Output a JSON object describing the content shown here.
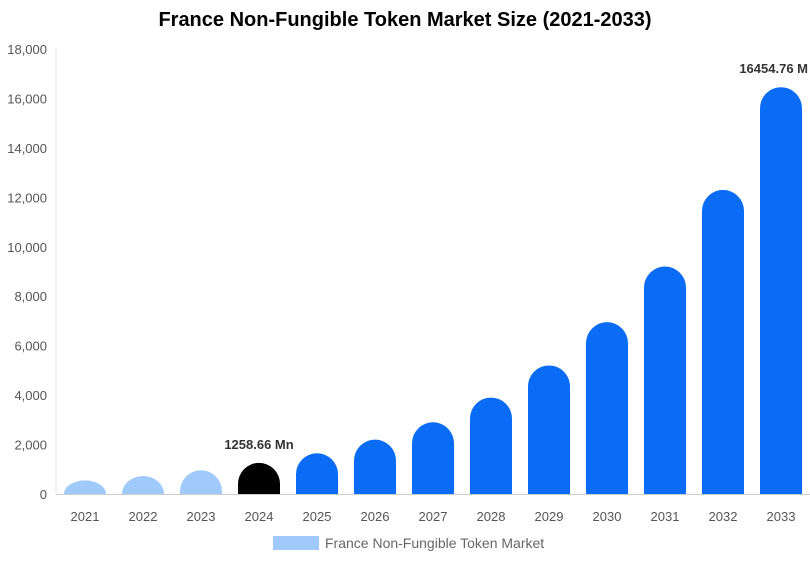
{
  "chart_data": {
    "type": "bar",
    "title": "France Non-Fungible Token Market Size (2021-2033)",
    "xlabel": "",
    "ylabel": "",
    "categories": [
      "2021",
      "2022",
      "2023",
      "2024",
      "2025",
      "2026",
      "2027",
      "2028",
      "2029",
      "2030",
      "2031",
      "2032",
      "2033"
    ],
    "series": [
      {
        "name": "France Non-Fungible Token Market",
        "values": [
          550,
          730,
          960,
          1258.66,
          1650,
          2200,
          2900,
          3900,
          5200,
          6950,
          9200,
          12300,
          16454.76
        ]
      }
    ],
    "bar_colors": [
      "#a0cafc",
      "#a0cafc",
      "#a0cafc",
      "#000000",
      "#0a6cf5",
      "#0a6cf5",
      "#0a6cf5",
      "#0a6cf5",
      "#0a6cf5",
      "#0a6cf5",
      "#0a6cf5",
      "#0a6cf5",
      "#0a6cf5"
    ],
    "data_labels": [
      {
        "index": 3,
        "text": "1258.66 Mn"
      },
      {
        "index": 12,
        "text": "16454.76 M"
      }
    ],
    "ylim": [
      0,
      18000
    ],
    "yticks": [
      0,
      2000,
      4000,
      6000,
      8000,
      10000,
      12000,
      14000,
      16000,
      18000
    ],
    "ytick_labels": [
      "0",
      "2,000",
      "4,000",
      "6,000",
      "8,000",
      "10,000",
      "12,000",
      "14,000",
      "16,000",
      "18,000"
    ],
    "grid": false,
    "legend": {
      "position": "bottom-center",
      "label": "France Non-Fungible Token Market",
      "color": "#a0cafc"
    }
  }
}
